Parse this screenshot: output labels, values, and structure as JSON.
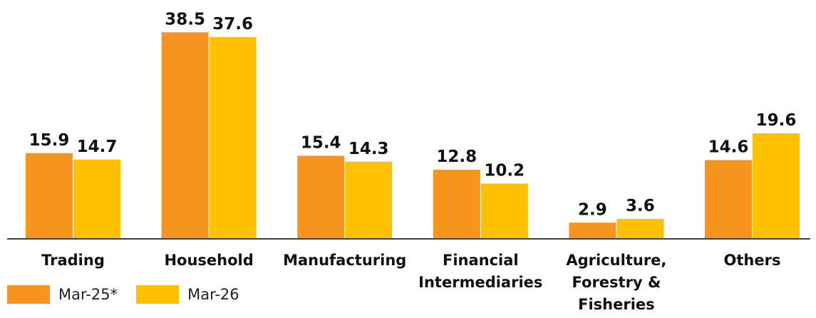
{
  "chart_data": {
    "type": "bar",
    "categories": [
      "Trading",
      "Household",
      "Manufacturing",
      "Financial Intermediaries",
      "Agriculture, Forestry & Fisheries",
      "Others"
    ],
    "category_lines": [
      [
        "Trading"
      ],
      [
        "Household"
      ],
      [
        "Manufacturing"
      ],
      [
        "Financial",
        "Intermediaries"
      ],
      [
        "Agriculture,",
        "Forestry &",
        "Fisheries"
      ],
      [
        "Others"
      ]
    ],
    "series": [
      {
        "name": "Mar-25*",
        "color": "#F7941D",
        "values": [
          15.9,
          38.5,
          15.4,
          12.8,
          2.9,
          14.6
        ]
      },
      {
        "name": "Mar-26",
        "color": "#FFC000",
        "values": [
          14.7,
          37.6,
          14.3,
          10.2,
          3.6,
          19.6
        ]
      }
    ],
    "ylim": [
      0,
      40
    ],
    "grid": false,
    "legend_position": "bottom-left",
    "data_labels": true
  }
}
